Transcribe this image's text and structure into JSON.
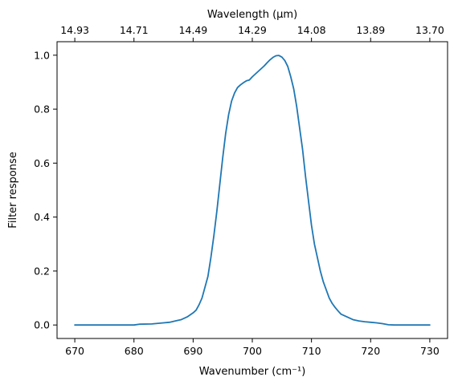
{
  "chart_data": {
    "type": "line",
    "title": "",
    "xlabel": "Wavenumber (cm⁻¹)",
    "ylabel": "Filter response",
    "top_xlabel": "Wavelength (μm)",
    "xlim": [
      667,
      733
    ],
    "ylim": [
      -0.05,
      1.05
    ],
    "x_ticks": [
      670,
      680,
      690,
      700,
      710,
      720,
      730
    ],
    "y_ticks": [
      0.0,
      0.2,
      0.4,
      0.6,
      0.8,
      1.0
    ],
    "y_tick_labels": [
      "0.0",
      "0.2",
      "0.4",
      "0.6",
      "0.8",
      "1.0"
    ],
    "top_x_tick_positions": [
      670,
      680,
      690,
      700,
      710,
      720,
      730
    ],
    "top_x_tick_labels": [
      "14.93",
      "14.71",
      "14.49",
      "14.29",
      "14.08",
      "13.89",
      "13.70"
    ],
    "grid": false,
    "line_color": "#1f77b4",
    "series": [
      {
        "x": [
          670,
          675,
          680,
          681,
          683,
          685,
          686,
          687,
          688,
          689,
          690,
          690.5,
          691,
          691.5,
          692,
          692.5,
          693,
          693.5,
          694,
          694.5,
          695,
          695.5,
          696,
          696.5,
          697,
          697.5,
          698,
          698.5,
          699,
          699.5,
          700,
          700.5,
          701,
          701.5,
          702,
          702.5,
          703,
          703.5,
          704,
          704.5,
          705,
          705.5,
          706,
          706.5,
          707,
          707.5,
          708,
          708.5,
          709,
          709.5,
          710,
          710.5,
          711,
          711.5,
          712,
          712.5,
          713,
          713.5,
          714,
          714.5,
          715,
          716,
          717,
          718,
          719,
          720,
          721,
          722,
          723,
          724,
          725,
          726,
          730
        ],
        "y": [
          0.0,
          0.0,
          0.0,
          0.003,
          0.004,
          0.008,
          0.01,
          0.015,
          0.02,
          0.03,
          0.045,
          0.055,
          0.075,
          0.1,
          0.14,
          0.18,
          0.25,
          0.33,
          0.42,
          0.52,
          0.62,
          0.71,
          0.78,
          0.83,
          0.86,
          0.88,
          0.89,
          0.898,
          0.905,
          0.908,
          0.92,
          0.93,
          0.94,
          0.95,
          0.96,
          0.972,
          0.983,
          0.992,
          0.998,
          0.999,
          0.993,
          0.98,
          0.958,
          0.92,
          0.875,
          0.81,
          0.73,
          0.65,
          0.55,
          0.46,
          0.37,
          0.3,
          0.25,
          0.2,
          0.16,
          0.13,
          0.1,
          0.08,
          0.065,
          0.052,
          0.04,
          0.03,
          0.02,
          0.015,
          0.012,
          0.01,
          0.008,
          0.005,
          0.001,
          0.0,
          0.0,
          0.0,
          0.0
        ]
      }
    ]
  }
}
